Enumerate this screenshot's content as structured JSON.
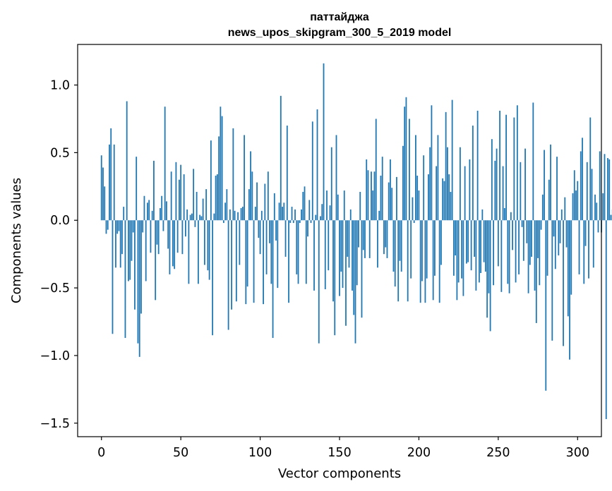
{
  "chart_data": {
    "type": "bar",
    "title_line1": "паттайджа",
    "title_line2": "news_upos_skipgram_300_5_2019 model",
    "xlabel": "Vector components",
    "ylabel": "Components values",
    "xlim": [
      -15.0,
      315.0
    ],
    "ylim": [
      -1.6,
      1.3
    ],
    "xticks": [
      0,
      50,
      100,
      150,
      200,
      250,
      300
    ],
    "xtick_labels": [
      "0",
      "50",
      "100",
      "150",
      "200",
      "250",
      "300"
    ],
    "yticks": [
      -1.5,
      -1.0,
      -0.5,
      0.0,
      0.5,
      1.0
    ],
    "ytick_labels": [
      "−1.5",
      "−1.0",
      "−0.5",
      "0.0",
      "0.5",
      "1.0"
    ],
    "bar_color": "#1f77b4",
    "values": [
      0.48,
      0.39,
      0.25,
      -0.1,
      -0.07,
      0.56,
      0.68,
      -0.84,
      0.56,
      -0.35,
      -0.1,
      -0.08,
      -0.35,
      -0.25,
      0.1,
      -0.87,
      0.88,
      -0.45,
      -0.44,
      -0.3,
      -0.09,
      -0.66,
      0.47,
      -0.91,
      -1.01,
      -0.69,
      -0.09,
      0.18,
      -0.45,
      0.13,
      0.15,
      -0.24,
      0.07,
      0.44,
      -0.59,
      -0.18,
      -0.25,
      0.09,
      0.18,
      -0.08,
      0.84,
      0.14,
      -0.21,
      -0.4,
      0.36,
      -0.34,
      -0.36,
      0.43,
      -0.24,
      0.3,
      0.41,
      -0.25,
      0.34,
      -0.12,
      0.08,
      -0.47,
      0.04,
      0.05,
      0.38,
      -0.05,
      0.21,
      -0.47,
      0.04,
      0.03,
      0.16,
      -0.33,
      0.23,
      -0.37,
      -0.44,
      0.59,
      -0.85,
      0.05,
      0.33,
      0.34,
      0.62,
      0.84,
      0.77,
      -0.02,
      0.13,
      0.23,
      -0.81,
      0.08,
      -0.66,
      0.68,
      0.07,
      -0.6,
      0.06,
      -0.33,
      0.09,
      0.1,
      0.63,
      -0.62,
      -0.49,
      0.23,
      0.51,
      0.36,
      -0.61,
      0.1,
      0.28,
      -0.13,
      -0.25,
      0.07,
      -0.62,
      0.27,
      -0.4,
      0.36,
      -0.17,
      -0.47,
      -0.87,
      0.2,
      -0.15,
      -0.5,
      0.13,
      0.92,
      0.1,
      0.13,
      -0.27,
      0.7,
      -0.61,
      -0.02,
      0.1,
      -0.02,
      0.08,
      -0.4,
      -0.47,
      -0.02,
      0.08,
      0.21,
      0.25,
      -0.47,
      -0.12,
      0.15,
      -0.02,
      0.73,
      -0.52,
      0.04,
      0.82,
      -0.91,
      0.03,
      0.12,
      1.16,
      -0.51,
      0.22,
      -0.37,
      0.11,
      0.54,
      -0.6,
      -0.85,
      0.63,
      0.19,
      -0.56,
      -0.38,
      -0.5,
      0.22,
      -0.78,
      -0.27,
      -0.35,
      0.08,
      -0.52,
      -0.7,
      -0.91,
      -0.48,
      -0.2,
      0.21,
      -0.72,
      -0.22,
      -0.28,
      0.45,
      0.37,
      -0.28,
      0.36,
      0.22,
      0.36,
      0.75,
      -0.35,
      0.07,
      0.33,
      0.47,
      -0.25,
      -0.2,
      -0.28,
      0.28,
      0.45,
      0.24,
      -0.38,
      -0.49,
      0.32,
      -0.6,
      -0.3,
      -0.38,
      0.55,
      0.84,
      0.91,
      -0.6,
      0.75,
      -0.43,
      0.17,
      -0.02,
      0.63,
      0.33,
      0.22,
      -0.61,
      -0.45,
      0.48,
      -0.61,
      -0.43,
      0.34,
      0.54,
      0.85,
      -0.59,
      -0.41,
      0.4,
      0.63,
      -0.61,
      -0.33,
      0.31,
      0.29,
      0.8,
      0.54,
      0.34,
      0.21,
      0.89,
      -0.41,
      -0.26,
      -0.59,
      -0.46,
      0.54,
      -0.43,
      -0.56,
      0.4,
      -0.32,
      -0.31,
      0.45,
      -0.37,
      0.7,
      -0.27,
      -0.52,
      0.81,
      -0.46,
      -0.39,
      0.08,
      -0.31,
      -0.38,
      -0.72,
      -0.54,
      -0.82,
      0.6,
      -0.48,
      0.44,
      0.53,
      -0.34,
      0.81,
      -0.53,
      0.4,
      0.09,
      0.78,
      -0.47,
      -0.54,
      0.06,
      -0.22,
      0.76,
      -0.46,
      0.85,
      -0.4,
      0.43,
      -0.05,
      -0.3,
      0.53,
      -0.17,
      -0.54,
      -0.33,
      -0.27,
      0.87,
      -0.52,
      -0.76,
      -0.28,
      -0.48,
      -0.07,
      0.19,
      0.52,
      -1.26,
      -0.41,
      0.3,
      0.56,
      -0.89,
      -0.12,
      -0.36,
      0.47,
      -0.26,
      -0.17,
      0.08,
      -0.93,
      0.17,
      -0.2,
      -0.71,
      -1.03,
      -0.55,
      0.2,
      0.37,
      0.22,
      0.29,
      -0.4,
      0.51,
      0.61,
      -0.47,
      -0.19,
      0.43,
      -0.43,
      0.76,
      0.38,
      -0.35,
      0.19,
      0.13,
      -0.09,
      0.51,
      -0.09,
      0.2,
      0.49,
      -1.47,
      0.46,
      0.45,
      0.04,
      0.08,
      0.1
    ]
  }
}
